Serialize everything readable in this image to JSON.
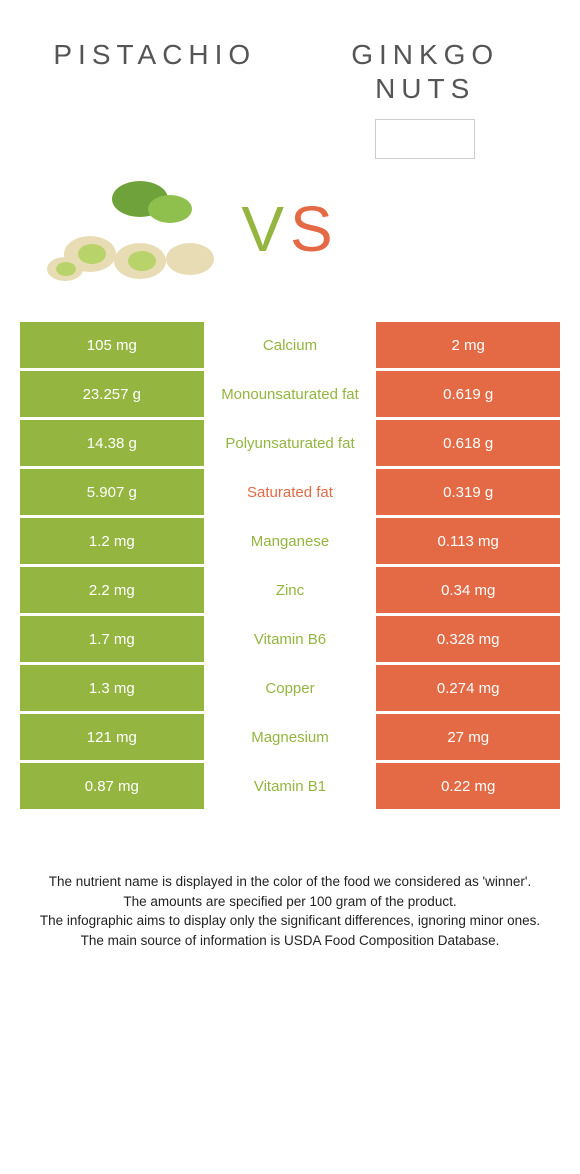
{
  "left_food": {
    "name": "PISTACHIO"
  },
  "right_food": {
    "name": "GINKGO NUTS"
  },
  "vs_label": {
    "v": "V",
    "s": "S"
  },
  "colors": {
    "left": "#94b53f",
    "right": "#e36a45",
    "mid_bg": "#ffffff"
  },
  "table": {
    "rows": [
      {
        "left": "105 mg",
        "label": "Calcium",
        "right": "2 mg",
        "winner": "left"
      },
      {
        "left": "23.257 g",
        "label": "Monounsaturated fat",
        "right": "0.619 g",
        "winner": "left"
      },
      {
        "left": "14.38 g",
        "label": "Polyunsaturated fat",
        "right": "0.618 g",
        "winner": "left"
      },
      {
        "left": "5.907 g",
        "label": "Saturated fat",
        "right": "0.319 g",
        "winner": "right"
      },
      {
        "left": "1.2 mg",
        "label": "Manganese",
        "right": "0.113 mg",
        "winner": "left"
      },
      {
        "left": "2.2 mg",
        "label": "Zinc",
        "right": "0.34 mg",
        "winner": "left"
      },
      {
        "left": "1.7 mg",
        "label": "Vitamin B6",
        "right": "0.328 mg",
        "winner": "left"
      },
      {
        "left": "1.3 mg",
        "label": "Copper",
        "right": "0.274 mg",
        "winner": "left"
      },
      {
        "left": "121 mg",
        "label": "Magnesium",
        "right": "27 mg",
        "winner": "left"
      },
      {
        "left": "0.87 mg",
        "label": "Vitamin B1",
        "right": "0.22 mg",
        "winner": "left"
      }
    ]
  },
  "footnotes": {
    "line1": "The nutrient name is displayed in the color of the food we considered as 'winner'.",
    "line2": "The amounts are specified per 100 gram of the product.",
    "line3": "The infographic aims to display only the significant differences, ignoring minor ones.",
    "line4": "The main source of information is USDA Food Composition Database."
  }
}
